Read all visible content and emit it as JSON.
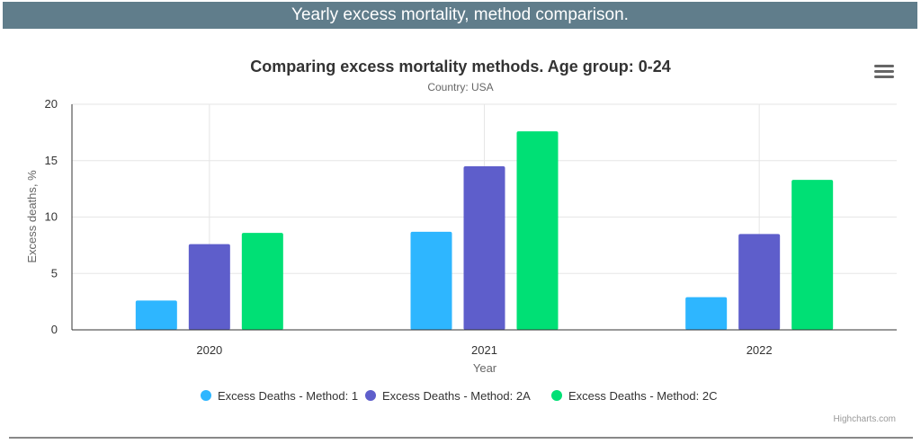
{
  "page": {
    "header_title": "Yearly excess mortality, method comparison."
  },
  "chart_menu": {
    "icon": "hamburger-menu-icon"
  },
  "credits": "Highcharts.com",
  "chart_data": {
    "type": "bar",
    "title": "Comparing excess mortality methods. Age group: 0-24",
    "subtitle": "Country: USA",
    "xlabel": "Year",
    "ylabel": "Excess deaths, %",
    "categories": [
      "2020",
      "2021",
      "2022"
    ],
    "ylim": [
      0,
      20
    ],
    "yticks": [
      "0",
      "5",
      "10",
      "15",
      "20"
    ],
    "grid": true,
    "legend_position": "bottom-center",
    "series": [
      {
        "name": "Excess Deaths - Method: 1",
        "color": "#2eb6ff",
        "values": [
          2.6,
          8.7,
          2.9
        ]
      },
      {
        "name": "Excess Deaths - Method: 2A",
        "color": "#5e5ecb",
        "values": [
          7.6,
          14.5,
          8.5
        ]
      },
      {
        "name": "Excess Deaths - Method: 2C",
        "color": "#00e075",
        "values": [
          8.6,
          17.6,
          13.3
        ]
      }
    ]
  }
}
